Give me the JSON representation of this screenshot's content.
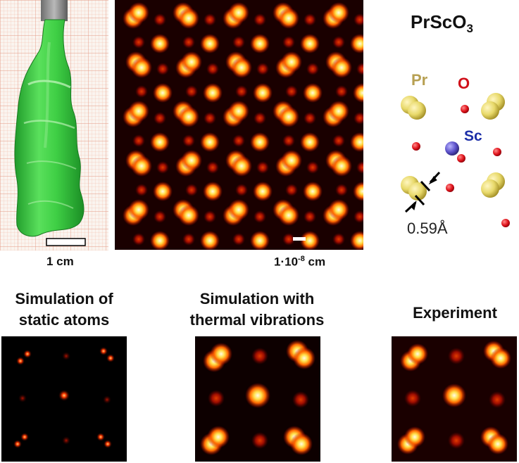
{
  "crystal_photo": {
    "scale_label": "1 cm"
  },
  "microscope_image": {
    "scale_label_prefix": "1·10",
    "scale_label_exp": "-8",
    "scale_label_unit": " cm"
  },
  "structure": {
    "formula_base": "PrScO",
    "formula_sub": "3",
    "label_pr": "Pr",
    "label_o": "O",
    "label_sc": "Sc",
    "distance_label": "0.59Å",
    "colors": {
      "pr": "#e8d96a",
      "o": "#e0141c",
      "sc": "#5a50c8",
      "label_pr": "#b7a052",
      "label_o": "#d0101a",
      "label_sc": "#1c2ea8"
    }
  },
  "panels": {
    "static": {
      "title_line1": "Simulation of",
      "title_line2": "static atoms"
    },
    "thermal": {
      "title_line1": "Simulation with",
      "title_line2": "thermal vibrations"
    },
    "experiment": {
      "title": "Experiment"
    }
  }
}
